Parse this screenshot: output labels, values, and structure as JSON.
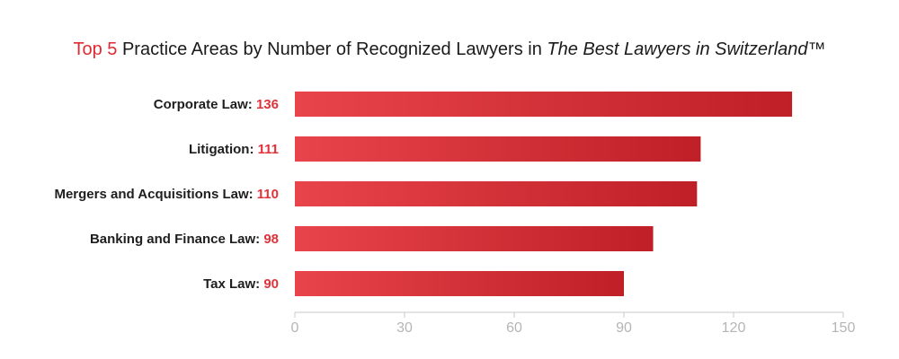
{
  "colors": {
    "accent": "#e02a33",
    "bar_start": "#e8444b",
    "bar_end": "#bf1f27",
    "axis": "#c8c8c8",
    "tick_text": "#b5b5b5"
  },
  "chart_data": {
    "type": "bar",
    "orientation": "horizontal",
    "title": {
      "highlight": "Top 5",
      "main": " Practice Areas by Number of Recognized Lawyers in ",
      "italic": "The Best Lawyers in Switzerland",
      "suffix": "™"
    },
    "categories": [
      "Corporate Law",
      "Litigation",
      "Mergers and Acquisitions Law",
      "Banking and Finance Law",
      "Tax Law"
    ],
    "values": [
      136,
      111,
      110,
      98,
      90
    ],
    "xlim": [
      0,
      150
    ],
    "xticks": [
      0,
      30,
      60,
      90,
      120,
      150
    ],
    "xlabel": "",
    "ylabel": "",
    "grid": false,
    "legend": "none"
  }
}
